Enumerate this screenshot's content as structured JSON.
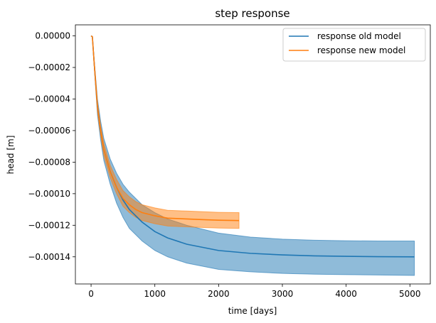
{
  "chart_data": {
    "type": "line",
    "title": "step response",
    "xlabel": "time [days]",
    "ylabel": "head [m]",
    "xlim": [
      -246,
      5320
    ],
    "ylim": [
      -0.0001572,
      7e-06
    ],
    "xticks": [
      0,
      1000,
      2000,
      3000,
      4000,
      5000
    ],
    "xtick_labels": [
      "0",
      "1000",
      "2000",
      "3000",
      "4000",
      "5000"
    ],
    "yticks": [
      0,
      -2e-05,
      -4e-05,
      -6e-05,
      -8e-05,
      -0.0001,
      -0.00012,
      -0.00014
    ],
    "ytick_labels": [
      "0.00000",
      "−0.00002",
      "−0.00004",
      "−0.00006",
      "−0.00008",
      "−0.00010",
      "−0.00012",
      "−0.00014"
    ],
    "grid": false,
    "legend_position": "top-right",
    "series": [
      {
        "name": "response old model",
        "color": "#1f77b4",
        "x": [
          0,
          20,
          50,
          100,
          150,
          200,
          300,
          400,
          500,
          600,
          800,
          1000,
          1200,
          1500,
          2000,
          2500,
          3000,
          3500,
          4000,
          4500,
          5070
        ],
        "y": [
          0,
          -5e-07,
          -1.8e-05,
          -4.5e-05,
          -6e-05,
          -7.2e-05,
          -8.6e-05,
          -9.6e-05,
          -0.000104,
          -0.00011,
          -0.000118,
          -0.000124,
          -0.000128,
          -0.000132,
          -0.000136,
          -0.0001378,
          -0.0001388,
          -0.0001394,
          -0.0001397,
          -0.0001399,
          -0.00014
        ],
        "band_upper": [
          0,
          -3e-07,
          -1.6e-05,
          -4e-05,
          -5.4e-05,
          -6.5e-05,
          -7.8e-05,
          -8.7e-05,
          -9.4e-05,
          -9.9e-05,
          -0.000107,
          -0.000112,
          -0.000116,
          -0.00012,
          -0.000125,
          -0.0001275,
          -0.0001288,
          -0.0001295,
          -0.0001298,
          -0.00013,
          -0.00013
        ],
        "band_lower": [
          0,
          -8e-07,
          -2e-05,
          -5e-05,
          -6.6e-05,
          -7.9e-05,
          -9.4e-05,
          -0.000106,
          -0.000115,
          -0.000122,
          -0.00013,
          -0.000136,
          -0.00014,
          -0.000144,
          -0.000148,
          -0.0001495,
          -0.0001505,
          -0.000151,
          -0.0001513,
          -0.0001515,
          -0.0001518
        ]
      },
      {
        "name": "response new model",
        "color": "#ff7f0e",
        "x": [
          0,
          20,
          50,
          100,
          150,
          200,
          300,
          400,
          500,
          600,
          700,
          800,
          1000,
          1200,
          1500,
          1800,
          2000,
          2320
        ],
        "y": [
          0,
          -5e-07,
          -1.8e-05,
          -4.5e-05,
          -6e-05,
          -7.2e-05,
          -8.6e-05,
          -9.6e-05,
          -0.000103,
          -0.000107,
          -0.00011,
          -0.000112,
          -0.000114,
          -0.0001155,
          -0.000116,
          -0.0001165,
          -0.0001168,
          -0.000117
        ],
        "band_upper": [
          0,
          -3e-07,
          -1.6e-05,
          -4.2e-05,
          -5.7e-05,
          -6.8e-05,
          -8.2e-05,
          -9.1e-05,
          -9.8e-05,
          -0.000102,
          -0.000105,
          -0.000107,
          -0.000109,
          -0.0001105,
          -0.000111,
          -0.0001115,
          -0.0001118,
          -0.000112
        ],
        "band_lower": [
          0,
          -8e-07,
          -2e-05,
          -4.8e-05,
          -6.3e-05,
          -7.6e-05,
          -9e-05,
          -0.0001,
          -0.000108,
          -0.000112,
          -0.000115,
          -0.000117,
          -0.000119,
          -0.0001205,
          -0.000121,
          -0.0001215,
          -0.0001218,
          -0.000122
        ]
      }
    ]
  }
}
